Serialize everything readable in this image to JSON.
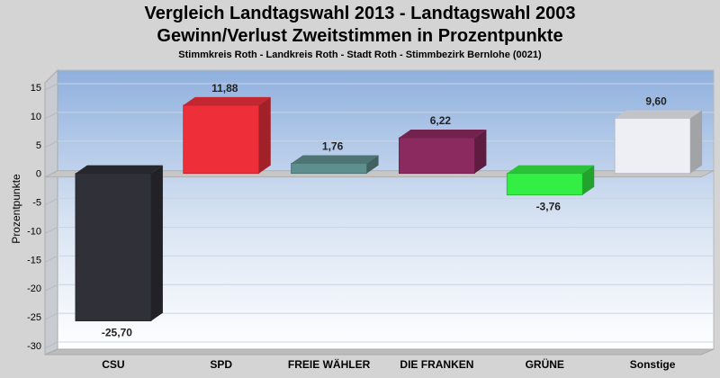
{
  "chart_data": {
    "type": "bar",
    "title": "Vergleich Landtagswahl 2013 - Landtagswahl 2003",
    "subtitle": "Gewinn/Verlust Zweitstimmen in Prozentpunkte",
    "subtitle2": "Stimmkreis Roth - Landkreis Roth - Stadt Roth - Stimmbezirk Bernlohe (0021)",
    "ylabel": "Prozentpunkte",
    "xlabel": "",
    "ylim": [
      -30,
      15
    ],
    "yticks": [
      "15",
      "10",
      "5",
      "0",
      "-5",
      "-10",
      "-15",
      "-20",
      "-25",
      "-30"
    ],
    "grid": true,
    "categories": [
      "CSU",
      "SPD",
      "FREIE WÄHLER",
      "DIE FRANKEN",
      "GRÜNE",
      "Sonstige"
    ],
    "values": [
      -25.7,
      11.88,
      1.76,
      6.22,
      -3.76,
      9.6
    ],
    "value_labels": [
      "-25,70",
      "11,88",
      "1,76",
      "6,22",
      "-3,76",
      "9,60"
    ],
    "colors": [
      "#303038",
      "#ee2f3a",
      "#5f8e8e",
      "#8a2a5e",
      "#33ee44",
      "#eeeff5"
    ]
  }
}
